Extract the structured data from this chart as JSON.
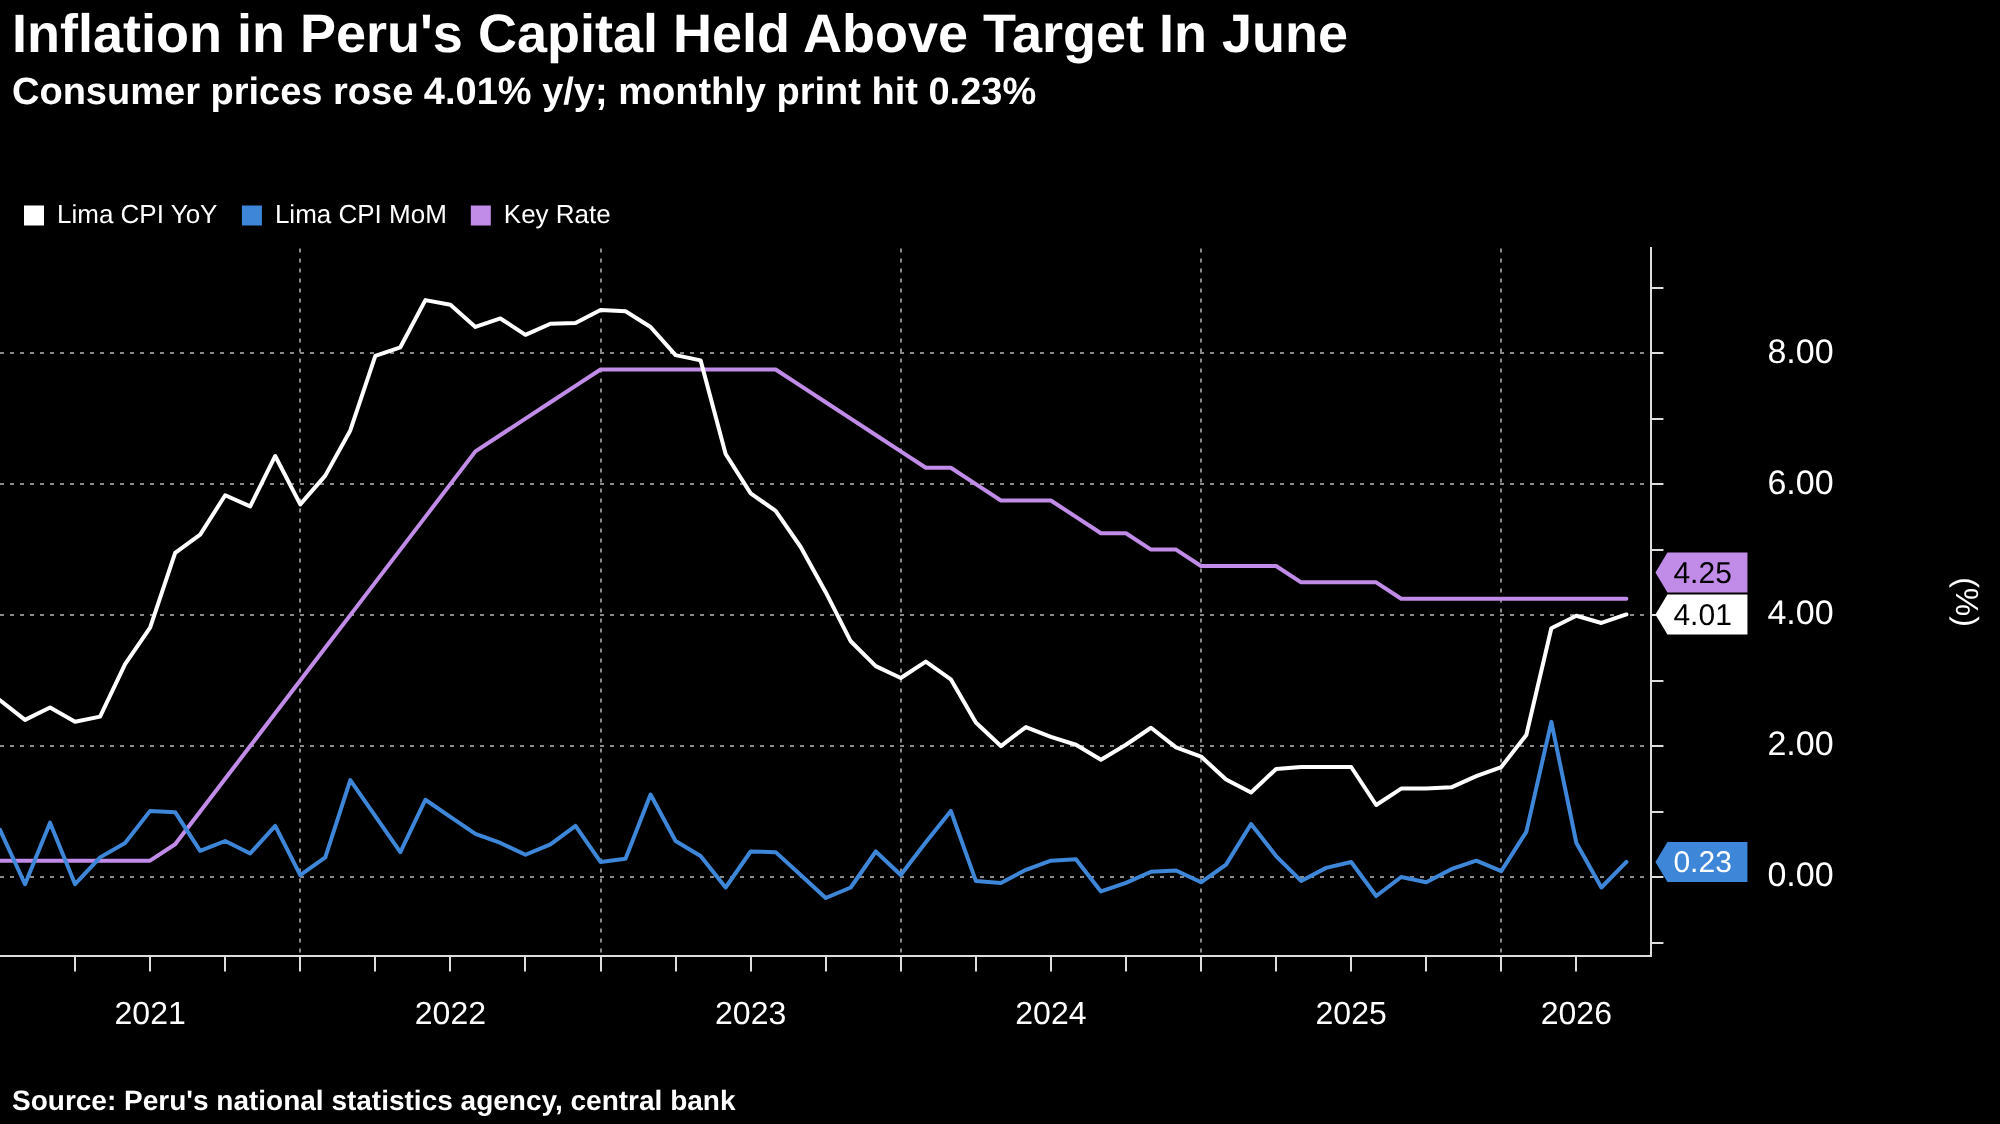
{
  "chart_data": {
    "type": "line",
    "title": "Inflation in Peru's Capital Held Above Target In June",
    "subtitle": "Consumer prices rose 4.01% y/y; monthly print hit 0.23%",
    "ylabel": "(%)",
    "annotations": [
      "Source: Peru's national statistics agency, central bank"
    ],
    "x": [
      "2021-01",
      "2021-02",
      "2021-03",
      "2021-04",
      "2021-05",
      "2021-06",
      "2021-07",
      "2021-08",
      "2021-09",
      "2021-10",
      "2021-11",
      "2021-12",
      "2022-01",
      "2022-02",
      "2022-03",
      "2022-04",
      "2022-05",
      "2022-06",
      "2022-07",
      "2022-08",
      "2022-09",
      "2022-10",
      "2022-11",
      "2022-12",
      "2023-01",
      "2023-02",
      "2023-03",
      "2023-04",
      "2023-05",
      "2023-06",
      "2023-07",
      "2023-08",
      "2023-09",
      "2023-10",
      "2023-11",
      "2023-12",
      "2024-01",
      "2024-02",
      "2024-03",
      "2024-04",
      "2024-05",
      "2024-06",
      "2024-07",
      "2024-08",
      "2024-09",
      "2024-10",
      "2024-11",
      "2024-12",
      "2025-01",
      "2025-02",
      "2025-03",
      "2025-04",
      "2025-05",
      "2025-06",
      "2025-07",
      "2025-08",
      "2025-09",
      "2025-10",
      "2025-11",
      "2025-12",
      "2026-01",
      "2026-02",
      "2026-03",
      "2026-04",
      "2026-05",
      "2026-06"
    ],
    "series": [
      {
        "name": "Lima CPI YoY",
        "color": "#ffffff",
        "values": [
          2.7,
          2.4,
          2.59,
          2.37,
          2.45,
          3.25,
          3.81,
          4.95,
          5.23,
          5.83,
          5.66,
          6.43,
          5.69,
          6.13,
          6.82,
          7.96,
          8.09,
          8.81,
          8.74,
          8.4,
          8.53,
          8.28,
          8.45,
          8.46,
          8.66,
          8.64,
          8.4,
          7.97,
          7.89,
          6.46,
          5.86,
          5.59,
          5.04,
          4.35,
          3.6,
          3.22,
          3.04,
          3.29,
          3.02,
          2.36,
          2.0,
          2.29,
          2.14,
          2.02,
          1.79,
          2.02,
          2.28,
          1.98,
          1.84,
          1.49,
          1.29,
          1.65,
          1.68,
          1.68,
          1.68,
          1.1,
          1.35,
          1.35,
          1.37,
          1.54,
          1.68,
          2.17,
          3.8,
          3.99,
          3.88,
          4.01
        ],
        "value_labels": [
          null,
          null,
          null,
          null,
          null,
          null,
          null,
          null,
          null,
          null,
          null,
          null,
          null,
          null,
          null,
          null,
          null,
          null,
          null,
          null,
          null,
          null,
          null,
          null,
          null,
          null,
          null,
          null,
          null,
          null,
          null,
          null,
          null,
          null,
          null,
          null,
          null,
          null,
          null,
          null,
          null,
          null,
          null,
          null,
          null,
          null,
          null,
          null,
          null,
          null,
          null,
          null,
          null,
          null,
          null,
          null,
          null,
          null,
          null,
          null,
          null,
          null,
          null,
          null,
          null,
          "4.01"
        ]
      },
      {
        "name": "Lima CPI MoM",
        "color": "#3d86d8",
        "values": [
          0.72,
          -0.11,
          0.83,
          -0.11,
          0.3,
          0.52,
          1.01,
          0.99,
          0.4,
          0.55,
          0.36,
          0.78,
          0.03,
          0.3,
          1.48,
          0.93,
          0.38,
          1.18,
          0.92,
          0.66,
          0.52,
          0.34,
          0.5,
          0.78,
          0.23,
          0.28,
          1.26,
          0.55,
          0.32,
          -0.16,
          0.39,
          0.38,
          0.03,
          -0.32,
          -0.16,
          0.39,
          0.03,
          0.53,
          1.01,
          -0.06,
          -0.09,
          0.11,
          0.25,
          0.27,
          -0.22,
          -0.09,
          0.08,
          0.1,
          -0.08,
          0.19,
          0.81,
          0.32,
          -0.06,
          0.14,
          0.23,
          -0.29,
          0.0,
          -0.08,
          0.12,
          0.25,
          0.09,
          0.69,
          2.37,
          0.52,
          -0.16,
          0.23
        ],
        "value_labels": [
          null,
          null,
          null,
          null,
          null,
          null,
          null,
          null,
          null,
          null,
          null,
          null,
          null,
          null,
          null,
          null,
          null,
          null,
          null,
          null,
          null,
          null,
          null,
          null,
          null,
          null,
          null,
          null,
          null,
          null,
          null,
          null,
          null,
          null,
          null,
          null,
          null,
          null,
          null,
          null,
          null,
          null,
          null,
          null,
          null,
          null,
          null,
          null,
          null,
          null,
          null,
          null,
          null,
          null,
          null,
          null,
          null,
          null,
          null,
          null,
          null,
          null,
          null,
          null,
          null,
          "0.23"
        ]
      },
      {
        "name": "Key Rate",
        "color": "#c18be8",
        "values": [
          0.25,
          0.25,
          0.25,
          0.25,
          0.25,
          0.25,
          0.25,
          0.5,
          1.0,
          1.5,
          2.0,
          2.5,
          3.0,
          3.5,
          4.0,
          4.5,
          5.0,
          5.5,
          6.0,
          6.5,
          6.75,
          7.0,
          7.25,
          7.5,
          7.75,
          7.75,
          7.75,
          7.75,
          7.75,
          7.75,
          7.75,
          7.75,
          7.5,
          7.25,
          7.0,
          6.75,
          6.5,
          6.25,
          6.25,
          6.0,
          5.75,
          5.75,
          5.75,
          5.5,
          5.25,
          5.25,
          5.0,
          5.0,
          4.75,
          4.75,
          4.75,
          4.75,
          4.5,
          4.5,
          4.5,
          4.5,
          4.25,
          4.25,
          4.25,
          4.25,
          4.25,
          4.25,
          4.25,
          4.25,
          4.25,
          4.25
        ],
        "value_labels": [
          null,
          null,
          null,
          null,
          null,
          null,
          null,
          null,
          null,
          null,
          null,
          null,
          null,
          null,
          null,
          null,
          null,
          null,
          null,
          null,
          null,
          null,
          null,
          null,
          null,
          null,
          null,
          null,
          null,
          null,
          null,
          null,
          null,
          null,
          null,
          null,
          null,
          null,
          null,
          null,
          null,
          null,
          null,
          null,
          null,
          null,
          null,
          null,
          null,
          null,
          null,
          null,
          null,
          null,
          null,
          null,
          null,
          null,
          null,
          null,
          null,
          null,
          null,
          null,
          null,
          "4.25"
        ]
      }
    ],
    "xlim": [
      "2021-01",
      "2026-07"
    ],
    "xticks": [
      {
        "value": "2021-04",
        "label": null
      },
      {
        "value": "2021-07",
        "label": "2021"
      },
      {
        "value": "2021-10",
        "label": null
      },
      {
        "value": "2022-01",
        "label": null
      },
      {
        "value": "2022-04",
        "label": null
      },
      {
        "value": "2022-07",
        "label": "2022"
      },
      {
        "value": "2022-10",
        "label": null
      },
      {
        "value": "2023-01",
        "label": null
      },
      {
        "value": "2023-04",
        "label": null
      },
      {
        "value": "2023-07",
        "label": "2023"
      },
      {
        "value": "2023-10",
        "label": null
      },
      {
        "value": "2024-01",
        "label": null
      },
      {
        "value": "2024-04",
        "label": null
      },
      {
        "value": "2024-07",
        "label": "2024"
      },
      {
        "value": "2024-10",
        "label": null
      },
      {
        "value": "2025-01",
        "label": null
      },
      {
        "value": "2025-04",
        "label": null
      },
      {
        "value": "2025-07",
        "label": "2025"
      },
      {
        "value": "2025-10",
        "label": null
      },
      {
        "value": "2026-01",
        "label": null
      },
      {
        "value": "2026-04",
        "label": "2026"
      }
    ],
    "ylim": [
      -1.2,
      9.6
    ],
    "yticks": [
      {
        "value": -1,
        "label": null
      },
      {
        "value": 0,
        "label": "0.00"
      },
      {
        "value": 1,
        "label": null
      },
      {
        "value": 2,
        "label": "2.00"
      },
      {
        "value": 3,
        "label": null
      },
      {
        "value": 4,
        "label": "4.00"
      },
      {
        "value": 5,
        "label": null
      },
      {
        "value": 6,
        "label": "6.00"
      },
      {
        "value": 7,
        "label": null
      },
      {
        "value": 8,
        "label": "8.00"
      },
      {
        "value": 9,
        "label": null
      }
    ],
    "grid": true,
    "legend": "top left",
    "marker": "none",
    "line_style": "solid"
  }
}
